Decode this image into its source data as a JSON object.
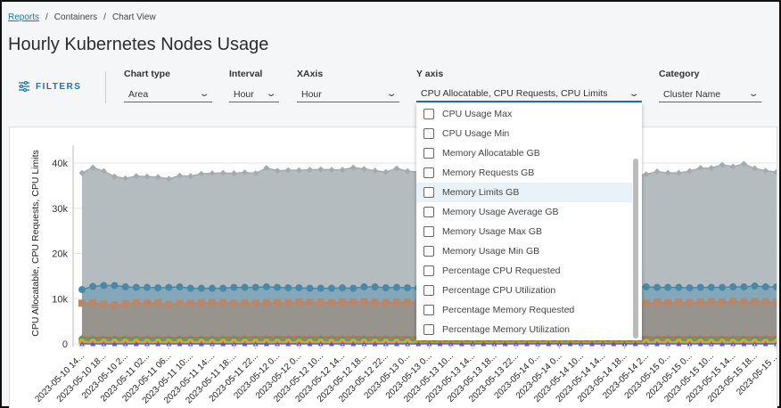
{
  "breadcrumb": {
    "items": [
      "Reports",
      "Containers",
      "Chart View"
    ]
  },
  "page_title": "Hourly Kubernetes Nodes Usage",
  "filters_label": "FILTERS",
  "fields": {
    "chart_type": {
      "label": "Chart type",
      "value": "Area"
    },
    "interval": {
      "label": "Interval",
      "value": "Hour"
    },
    "xaxis": {
      "label": "XAxis",
      "value": "Hour"
    },
    "yaxis": {
      "label": "Y axis",
      "value": "CPU Allocatable, CPU Requests, CPU Limits"
    },
    "category": {
      "label": "Category",
      "value": "Cluster Name"
    }
  },
  "yaxis_options": [
    {
      "label": "CPU Usage Max",
      "checked": false
    },
    {
      "label": "CPU Usage Min",
      "checked": false
    },
    {
      "label": "Memory Allocatable GB",
      "checked": false
    },
    {
      "label": "Memory Requests GB",
      "checked": false
    },
    {
      "label": "Memory Limits GB",
      "checked": false,
      "hovered": true
    },
    {
      "label": "Memory Usage Average GB",
      "checked": false
    },
    {
      "label": "Memory Usage Max GB",
      "checked": false
    },
    {
      "label": "Memory Usage Min GB",
      "checked": false
    },
    {
      "label": "Percentage CPU Requested",
      "checked": false
    },
    {
      "label": "Percentage CPU Utilization",
      "checked": false
    },
    {
      "label": "Percentage Memory Requested",
      "checked": false
    },
    {
      "label": "Percentage Memory Utilization",
      "checked": false
    }
  ],
  "chart_data": {
    "type": "area",
    "ylabel": "CPU Allocatable, CPU Requests, CPU Limits",
    "ylim": [
      0,
      40000
    ],
    "yticks": [
      "0",
      "10k",
      "20k",
      "30k",
      "40k"
    ],
    "grid": true,
    "xtick_labels": [
      "2023-05-10 14...",
      "2023-05-10 18...",
      "2023-05-10 2...",
      "2023-05-11 02...",
      "2023-05-11 06...",
      "2023-05-11 10:...",
      "2023-05-11 14:...",
      "2023-05-11 18:...",
      "2023-05-11 22...",
      "2023-05-12 0...",
      "2023-05-12 0...",
      "2023-05-12 10...",
      "2023-05-12 14...",
      "2023-05-12 18...",
      "2023-05-12 22...",
      "2023-05-13 0...",
      "2023-05-13 0...",
      "2023-05-13 10...",
      "2023-05-13 14...",
      "2023-05-13 18...",
      "2023-05-13 22...",
      "2023-05-14 0...",
      "2023-05-14 0...",
      "2023-05-14 10...",
      "2023-05-14 14...",
      "2023-05-14 18...",
      "2023-05-14 2...",
      "2023-05-15 0...",
      "2023-05-15 0...",
      "2023-05-15 10...",
      "2023-05-15 14...",
      "2023-05-15 18...",
      "2023-05-15 ..."
    ],
    "series": [
      {
        "color": "#a3abb0",
        "fill": "#b4bcc0",
        "marker": "diamond",
        "values": [
          37800,
          39000,
          38200,
          37000,
          36600,
          37100,
          37000,
          36900,
          36500,
          37200,
          37100,
          37600,
          37700,
          37800,
          37700,
          37900,
          37700,
          38900,
          38300,
          38400,
          38400,
          38500,
          38600,
          38500,
          38500,
          39000,
          38700,
          38300,
          38000,
          38800,
          38200,
          38000,
          37800,
          38100,
          38400,
          38200,
          37900,
          38300,
          38600,
          38400,
          38100,
          37900,
          38200,
          38500,
          38300,
          38000,
          37700,
          37600,
          37900,
          38100,
          37500,
          37300,
          37500,
          38100,
          37800,
          37800,
          38200,
          38900,
          38900,
          39600,
          39200,
          39800,
          38800,
          38300,
          38000
        ]
      },
      {
        "color": "#4a88a6",
        "fill": "#7ba3b7",
        "marker": "circle",
        "values": [
          12000,
          12700,
          12900,
          12900,
          12600,
          12500,
          12500,
          12400,
          12500,
          12600,
          12300,
          12300,
          12300,
          12300,
          12500,
          12500,
          12500,
          12600,
          12500,
          12400,
          12400,
          12300,
          12300,
          12300,
          12400,
          12300,
          12600,
          12600,
          12400,
          12500,
          12400,
          12400,
          12500,
          12500,
          12600,
          12400,
          12400,
          12500,
          12500,
          12300,
          12400,
          12500,
          12500,
          12600,
          12400,
          12400,
          12500,
          12500,
          12400,
          12500,
          12400,
          12500,
          12600,
          12500,
          12500,
          12500,
          12400,
          12500,
          12500,
          12500,
          12600,
          12600,
          12800,
          12600,
          12600
        ]
      },
      {
        "color": "#b8876a",
        "fill": "#9a9186",
        "marker": "square",
        "values": [
          9000,
          9100,
          8800,
          8600,
          8900,
          9100,
          9000,
          9100,
          8700,
          9000,
          9000,
          9100,
          9100,
          9100,
          9000,
          9000,
          9000,
          9100,
          9100,
          9100,
          9200,
          9200,
          9200,
          9100,
          9200,
          9300,
          9300,
          9200,
          9100,
          9200,
          9200,
          9100,
          9200,
          9200,
          9300,
          9200,
          9100,
          9200,
          9200,
          9300,
          9200,
          9200,
          9100,
          9200,
          9200,
          9300,
          9200,
          9200,
          9100,
          9200,
          9200,
          9100,
          9000,
          9200,
          9100,
          9200,
          9100,
          9200,
          9300,
          9200,
          9400,
          9300,
          9400,
          9300,
          9200
        ]
      },
      {
        "color": "#c8654a",
        "fill": "#7a9a7a",
        "marker": "triangle",
        "values": [
          1500,
          1400,
          1400,
          1400,
          1400,
          1400,
          1400,
          1400,
          1400,
          1400,
          1400,
          1400,
          1400,
          1400,
          1500,
          1500,
          1500,
          1500,
          1500,
          1500,
          1500,
          1500,
          1500,
          1500,
          1500,
          1500,
          1500,
          1500,
          1500,
          1500,
          1500,
          1500,
          1500,
          1500,
          1500,
          1500,
          1500,
          1500,
          1500,
          1500,
          1500,
          1500,
          1500,
          1500,
          1500,
          1500,
          1500,
          1500,
          1500,
          1500,
          1500,
          1500,
          1500,
          1500,
          1500,
          1500,
          1500,
          1500,
          1500,
          1500,
          1500,
          1500,
          1500,
          1500,
          1500
        ]
      },
      {
        "color": "#5a9a6a",
        "fill": "#6e9a78",
        "marker": "circle",
        "values": [
          1000,
          1000,
          1000,
          1000,
          1000,
          1000,
          1000,
          1000,
          1000,
          1000,
          1000,
          1000,
          1000,
          1000,
          1000,
          1000,
          1000,
          1000,
          1000,
          1000,
          1000,
          1000,
          1000,
          1000,
          1000,
          1000,
          1000,
          1000,
          1000,
          1000,
          1000,
          1000,
          1000,
          1000,
          1000,
          1000,
          1000,
          1000,
          1000,
          1000,
          1000,
          1000,
          1000,
          1000,
          1000,
          1000,
          1000,
          1000,
          1000,
          1000,
          1000,
          1000,
          1000,
          1000,
          1000,
          1000,
          1000,
          1000,
          1000,
          1000,
          1000,
          1000,
          1000,
          1000,
          1000
        ]
      },
      {
        "color": "#d9a52a",
        "fill": "#b8a070",
        "marker": "circle",
        "values": [
          400,
          400,
          400,
          400,
          400,
          400,
          400,
          400,
          400,
          400,
          400,
          400,
          400,
          400,
          400,
          400,
          400,
          400,
          400,
          400,
          400,
          400,
          400,
          400,
          400,
          400,
          400,
          400,
          400,
          400,
          400,
          400,
          400,
          400,
          400,
          400,
          400,
          400,
          400,
          400,
          400,
          400,
          400,
          400,
          400,
          400,
          400,
          400,
          400,
          400,
          400,
          400,
          400,
          400,
          400,
          400,
          400,
          400,
          400,
          400,
          400,
          400,
          400,
          400,
          400
        ]
      },
      {
        "color": "#5a5ad0",
        "fill": "#8888d0",
        "marker": "triangle",
        "values": [
          0,
          0,
          0,
          0,
          0,
          0,
          0,
          0,
          0,
          0,
          0,
          0,
          0,
          0,
          0,
          0,
          0,
          0,
          0,
          0,
          0,
          0,
          0,
          0,
          0,
          0,
          0,
          0,
          0,
          0,
          0,
          0,
          0,
          0,
          0,
          0,
          0,
          0,
          0,
          0,
          0,
          0,
          0,
          0,
          0,
          0,
          0,
          0,
          0,
          0,
          0,
          0,
          0,
          0,
          0,
          0,
          0,
          0,
          0,
          0,
          0,
          0,
          0,
          0,
          0
        ]
      }
    ]
  }
}
